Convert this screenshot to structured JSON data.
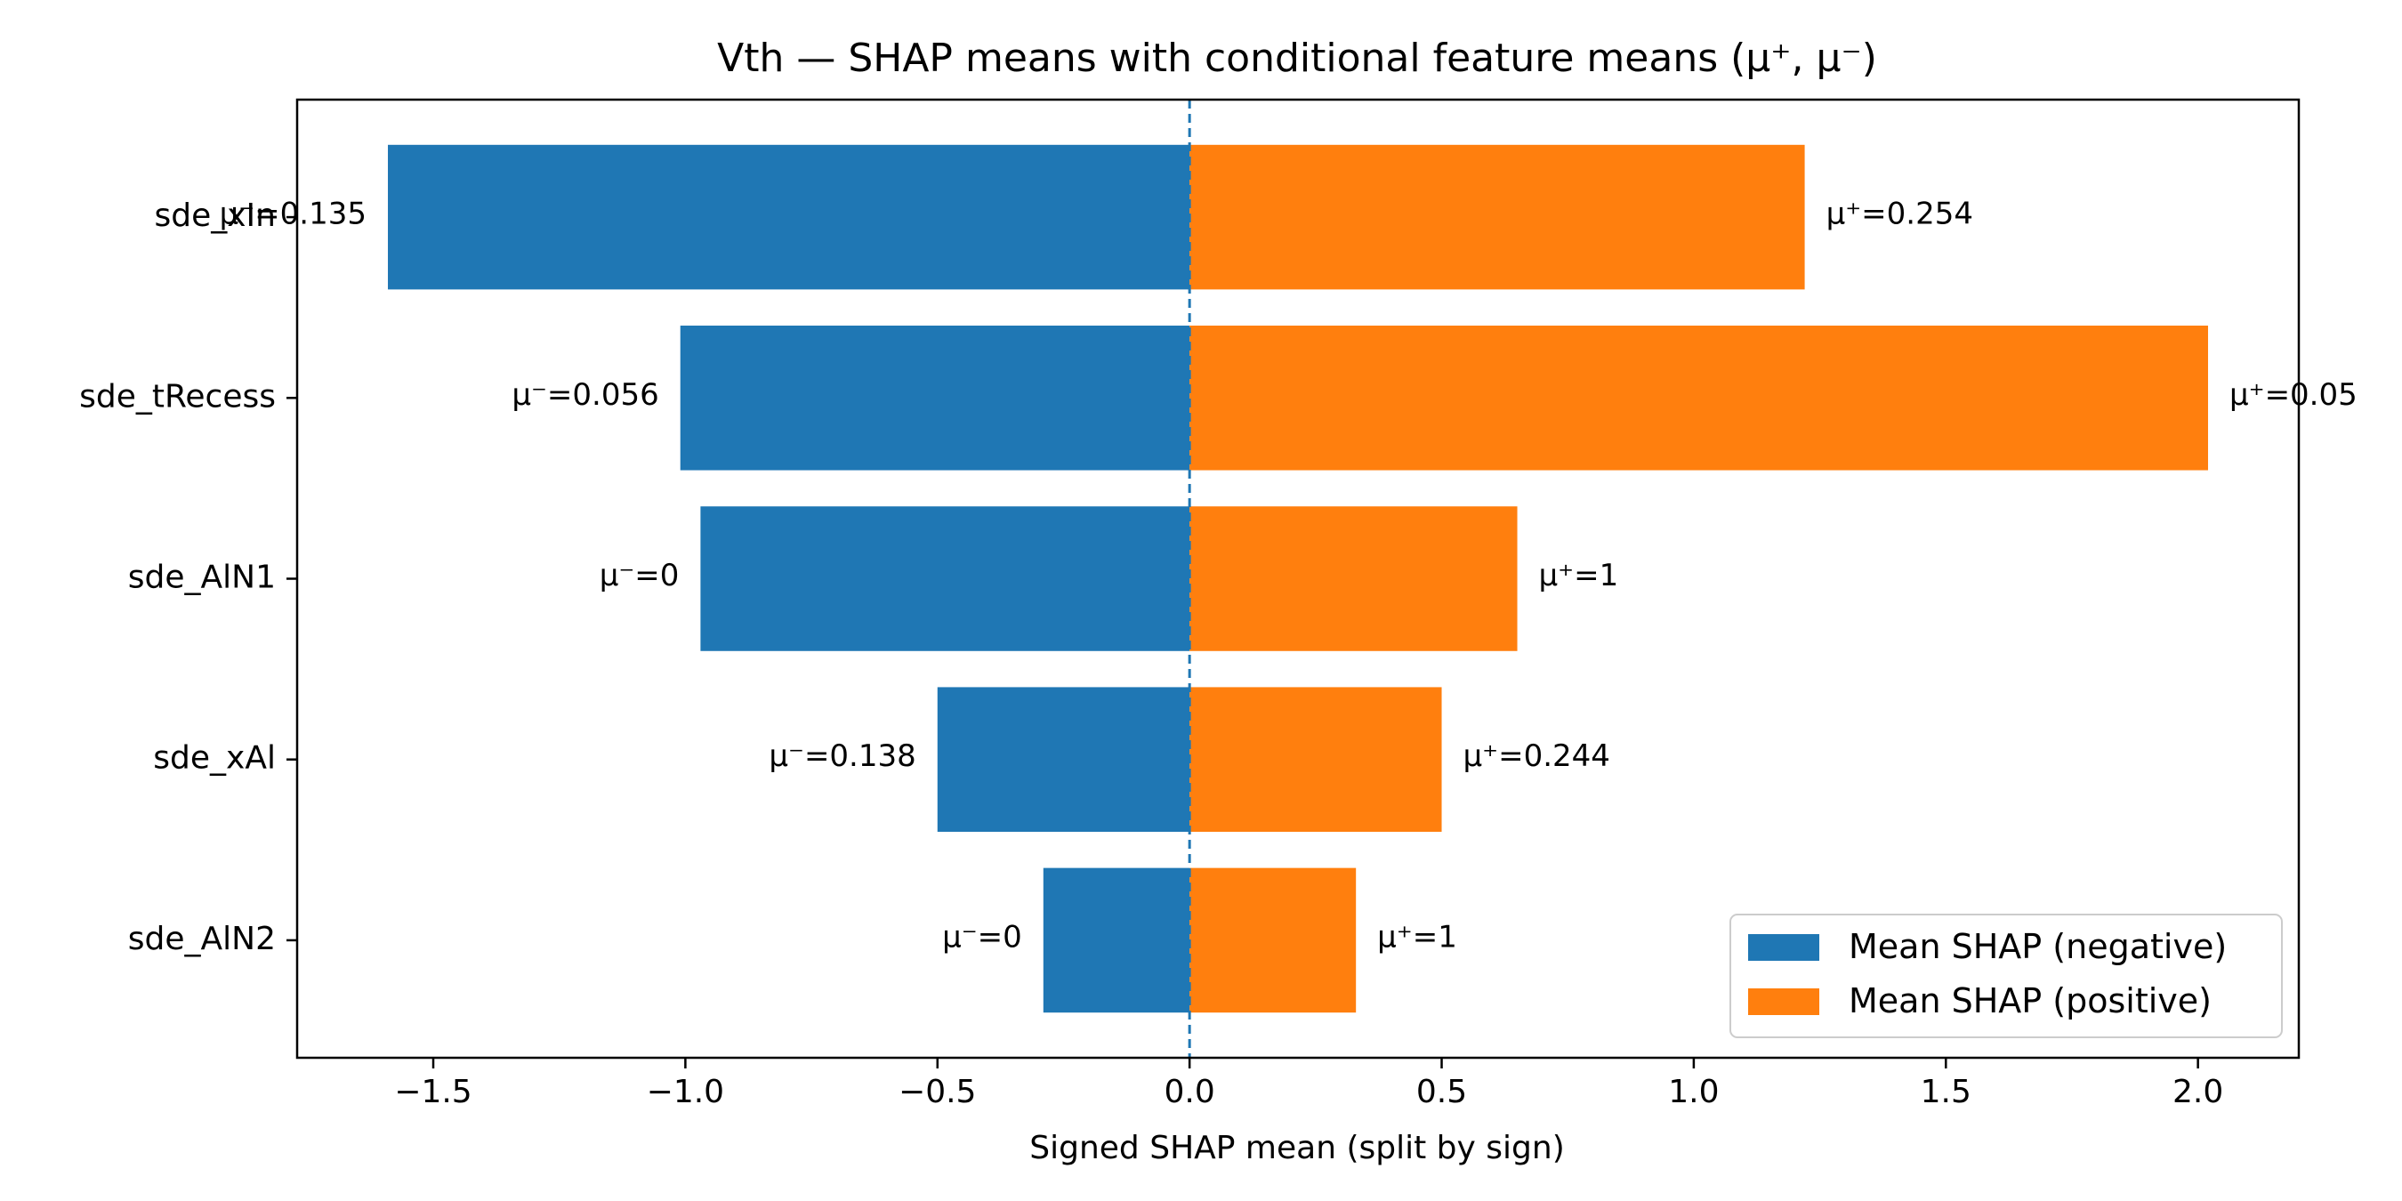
{
  "chart_data": {
    "type": "bar",
    "orientation": "horizontal",
    "title": "Vth — SHAP means with conditional feature means (μ⁺, μ⁻)",
    "xlabel": "Signed SHAP mean (split by sign)",
    "ylabel": "",
    "xlim": [
      -1.77,
      2.2
    ],
    "x_ticks": [
      -1.5,
      -1.0,
      -0.5,
      0.0,
      0.5,
      1.0,
      1.5,
      2.0
    ],
    "x_tick_labels": [
      "−1.5",
      "−1.0",
      "−0.5",
      "0.0",
      "0.5",
      "1.0",
      "1.5",
      "2.0"
    ],
    "categories": [
      "sde_xIn",
      "sde_tRecess",
      "sde_AlN1",
      "sde_xAl",
      "sde_AlN2"
    ],
    "series": [
      {
        "name": "Mean SHAP (negative)",
        "color": "#1f77b4",
        "values": [
          -1.59,
          -1.01,
          -0.97,
          -0.5,
          -0.29
        ],
        "labels": [
          "μ⁻=0.135",
          "μ⁻=0.056",
          "μ⁻=0",
          "μ⁻=0.138",
          "μ⁻=0"
        ]
      },
      {
        "name": "Mean SHAP (positive)",
        "color": "#ff7f0e",
        "values": [
          1.22,
          2.02,
          0.65,
          0.5,
          0.33
        ],
        "labels": [
          "μ⁺=0.254",
          "μ⁺=0.05",
          "μ⁺=1",
          "μ⁺=0.244",
          "μ⁺=1"
        ]
      }
    ],
    "zero_line": {
      "value": 0.0,
      "style": "dashed",
      "color": "#1f77b4"
    },
    "grid": false,
    "legend_position": "lower-right"
  }
}
